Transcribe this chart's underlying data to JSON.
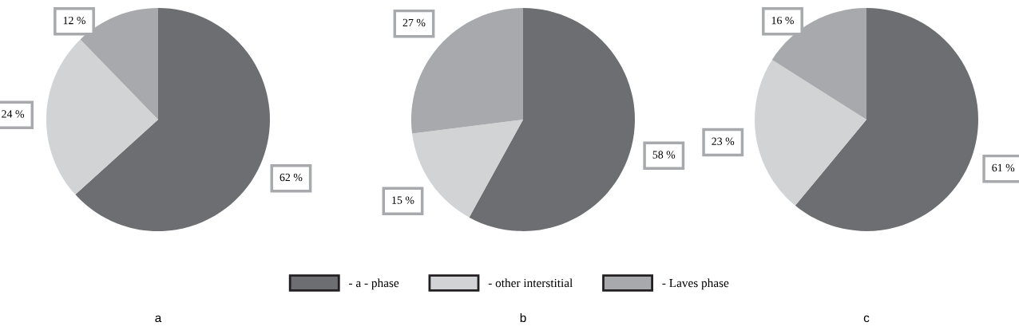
{
  "chart_data": [
    {
      "type": "pie",
      "title": "a",
      "categories": [
        "- a - phase",
        "- other interstitial",
        "- Laves phase"
      ],
      "values": [
        62,
        24,
        12
      ],
      "value_labels": [
        "62 %",
        "24 %",
        "12 %"
      ],
      "colors": [
        "#6d6e71",
        "#d1d3d4",
        "#a7a9ac"
      ],
      "legend": "bottom"
    },
    {
      "type": "pie",
      "title": "b",
      "categories": [
        null,
        null,
        null
      ],
      "values": [
        58,
        15,
        27
      ],
      "value_labels": [
        "58 %",
        "15 %",
        "27 %"
      ],
      "colors": [
        "#6d6e71",
        "#d1d3d4",
        "#a7a9ac"
      ]
    },
    {
      "type": "pie",
      "title": "c",
      "categories": [
        null,
        null,
        null
      ],
      "values": [
        61,
        23,
        16
      ],
      "value_labels": [
        "61 %",
        "23 %",
        "16 %"
      ],
      "colors": [
        "#6d6e71",
        "#d1d3d4",
        "#a7a9ac"
      ]
    }
  ]
}
